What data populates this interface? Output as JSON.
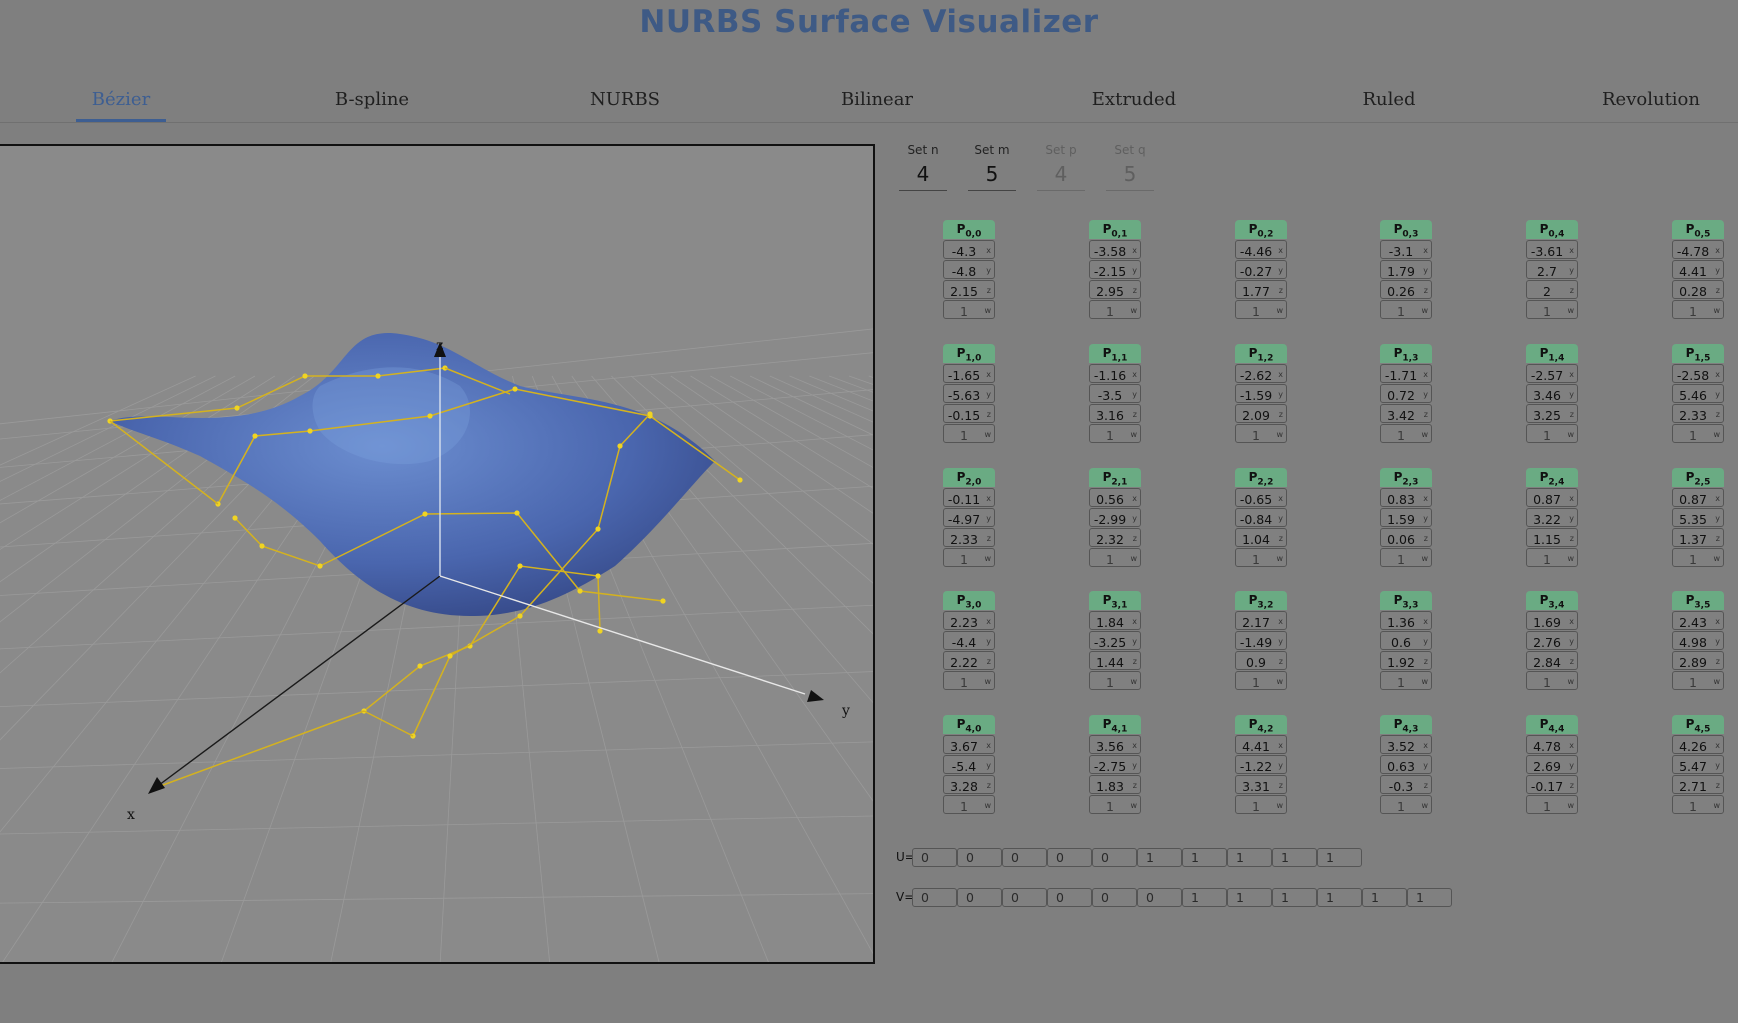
{
  "app_title": "NURBS Surface Visualizer",
  "tabs": [
    {
      "label": "Bézier",
      "active": true
    },
    {
      "label": "B-spline",
      "active": false
    },
    {
      "label": "NURBS",
      "active": false
    },
    {
      "label": "Bilinear",
      "active": false
    },
    {
      "label": "Extruded",
      "active": false
    },
    {
      "label": "Ruled",
      "active": false
    },
    {
      "label": "Revolution",
      "active": false
    }
  ],
  "params": [
    {
      "label": "Set n",
      "value": "4",
      "disabled": false
    },
    {
      "label": "Set m",
      "value": "5",
      "disabled": false
    },
    {
      "label": "Set p",
      "value": "4",
      "disabled": true
    },
    {
      "label": "Set q",
      "value": "5",
      "disabled": true
    }
  ],
  "axes": {
    "x": "x",
    "y": "y",
    "z": "z"
  },
  "colors": {
    "surface": "#4a66ae",
    "control_net": "#d4b21f",
    "point_header": "#6aab83",
    "accent": "#3d5e92"
  },
  "control_points": [
    [
      {
        "x": "-4.3",
        "y": "-4.8",
        "z": "2.15",
        "w": "1"
      },
      {
        "x": "-3.58",
        "y": "-2.15",
        "z": "2.95",
        "w": "1"
      },
      {
        "x": "-4.46",
        "y": "-0.27",
        "z": "1.77",
        "w": "1"
      },
      {
        "x": "-3.1",
        "y": "1.79",
        "z": "0.26",
        "w": "1"
      },
      {
        "x": "-3.61",
        "y": "2.7",
        "z": "2",
        "w": "1"
      },
      {
        "x": "-4.78",
        "y": "4.41",
        "z": "0.28",
        "w": "1"
      }
    ],
    [
      {
        "x": "-1.65",
        "y": "-5.63",
        "z": "-0.15",
        "w": "1"
      },
      {
        "x": "-1.16",
        "y": "-3.5",
        "z": "3.16",
        "w": "1"
      },
      {
        "x": "-2.62",
        "y": "-1.59",
        "z": "2.09",
        "w": "1"
      },
      {
        "x": "-1.71",
        "y": "0.72",
        "z": "3.42",
        "w": "1"
      },
      {
        "x": "-2.57",
        "y": "3.46",
        "z": "3.25",
        "w": "1"
      },
      {
        "x": "-2.58",
        "y": "5.46",
        "z": "2.33",
        "w": "1"
      }
    ],
    [
      {
        "x": "-0.11",
        "y": "-4.97",
        "z": "2.33",
        "w": "1"
      },
      {
        "x": "0.56",
        "y": "-2.99",
        "z": "2.32",
        "w": "1"
      },
      {
        "x": "-0.65",
        "y": "-0.84",
        "z": "1.04",
        "w": "1"
      },
      {
        "x": "0.83",
        "y": "1.59",
        "z": "0.06",
        "w": "1"
      },
      {
        "x": "0.87",
        "y": "3.22",
        "z": "1.15",
        "w": "1"
      },
      {
        "x": "0.87",
        "y": "5.35",
        "z": "1.37",
        "w": "1"
      }
    ],
    [
      {
        "x": "2.23",
        "y": "-4.4",
        "z": "2.22",
        "w": "1"
      },
      {
        "x": "1.84",
        "y": "-3.25",
        "z": "1.44",
        "w": "1"
      },
      {
        "x": "2.17",
        "y": "-1.49",
        "z": "0.9",
        "w": "1"
      },
      {
        "x": "1.36",
        "y": "0.6",
        "z": "1.92",
        "w": "1"
      },
      {
        "x": "1.69",
        "y": "2.76",
        "z": "2.84",
        "w": "1"
      },
      {
        "x": "2.43",
        "y": "4.98",
        "z": "2.89",
        "w": "1"
      }
    ],
    [
      {
        "x": "3.67",
        "y": "-5.4",
        "z": "3.28",
        "w": "1"
      },
      {
        "x": "3.56",
        "y": "-2.75",
        "z": "1.83",
        "w": "1"
      },
      {
        "x": "4.41",
        "y": "-1.22",
        "z": "3.31",
        "w": "1"
      },
      {
        "x": "3.52",
        "y": "0.63",
        "z": "-0.3",
        "w": "1"
      },
      {
        "x": "4.78",
        "y": "2.69",
        "z": "-0.17",
        "w": "1"
      },
      {
        "x": "4.26",
        "y": "5.47",
        "z": "2.71",
        "w": "1"
      }
    ]
  ],
  "knots": {
    "u_label": "U=",
    "v_label": "V=",
    "u": [
      "0",
      "0",
      "0",
      "0",
      "0",
      "1",
      "1",
      "1",
      "1",
      "1"
    ],
    "v": [
      "0",
      "0",
      "0",
      "0",
      "0",
      "0",
      "1",
      "1",
      "1",
      "1",
      "1",
      "1"
    ]
  }
}
